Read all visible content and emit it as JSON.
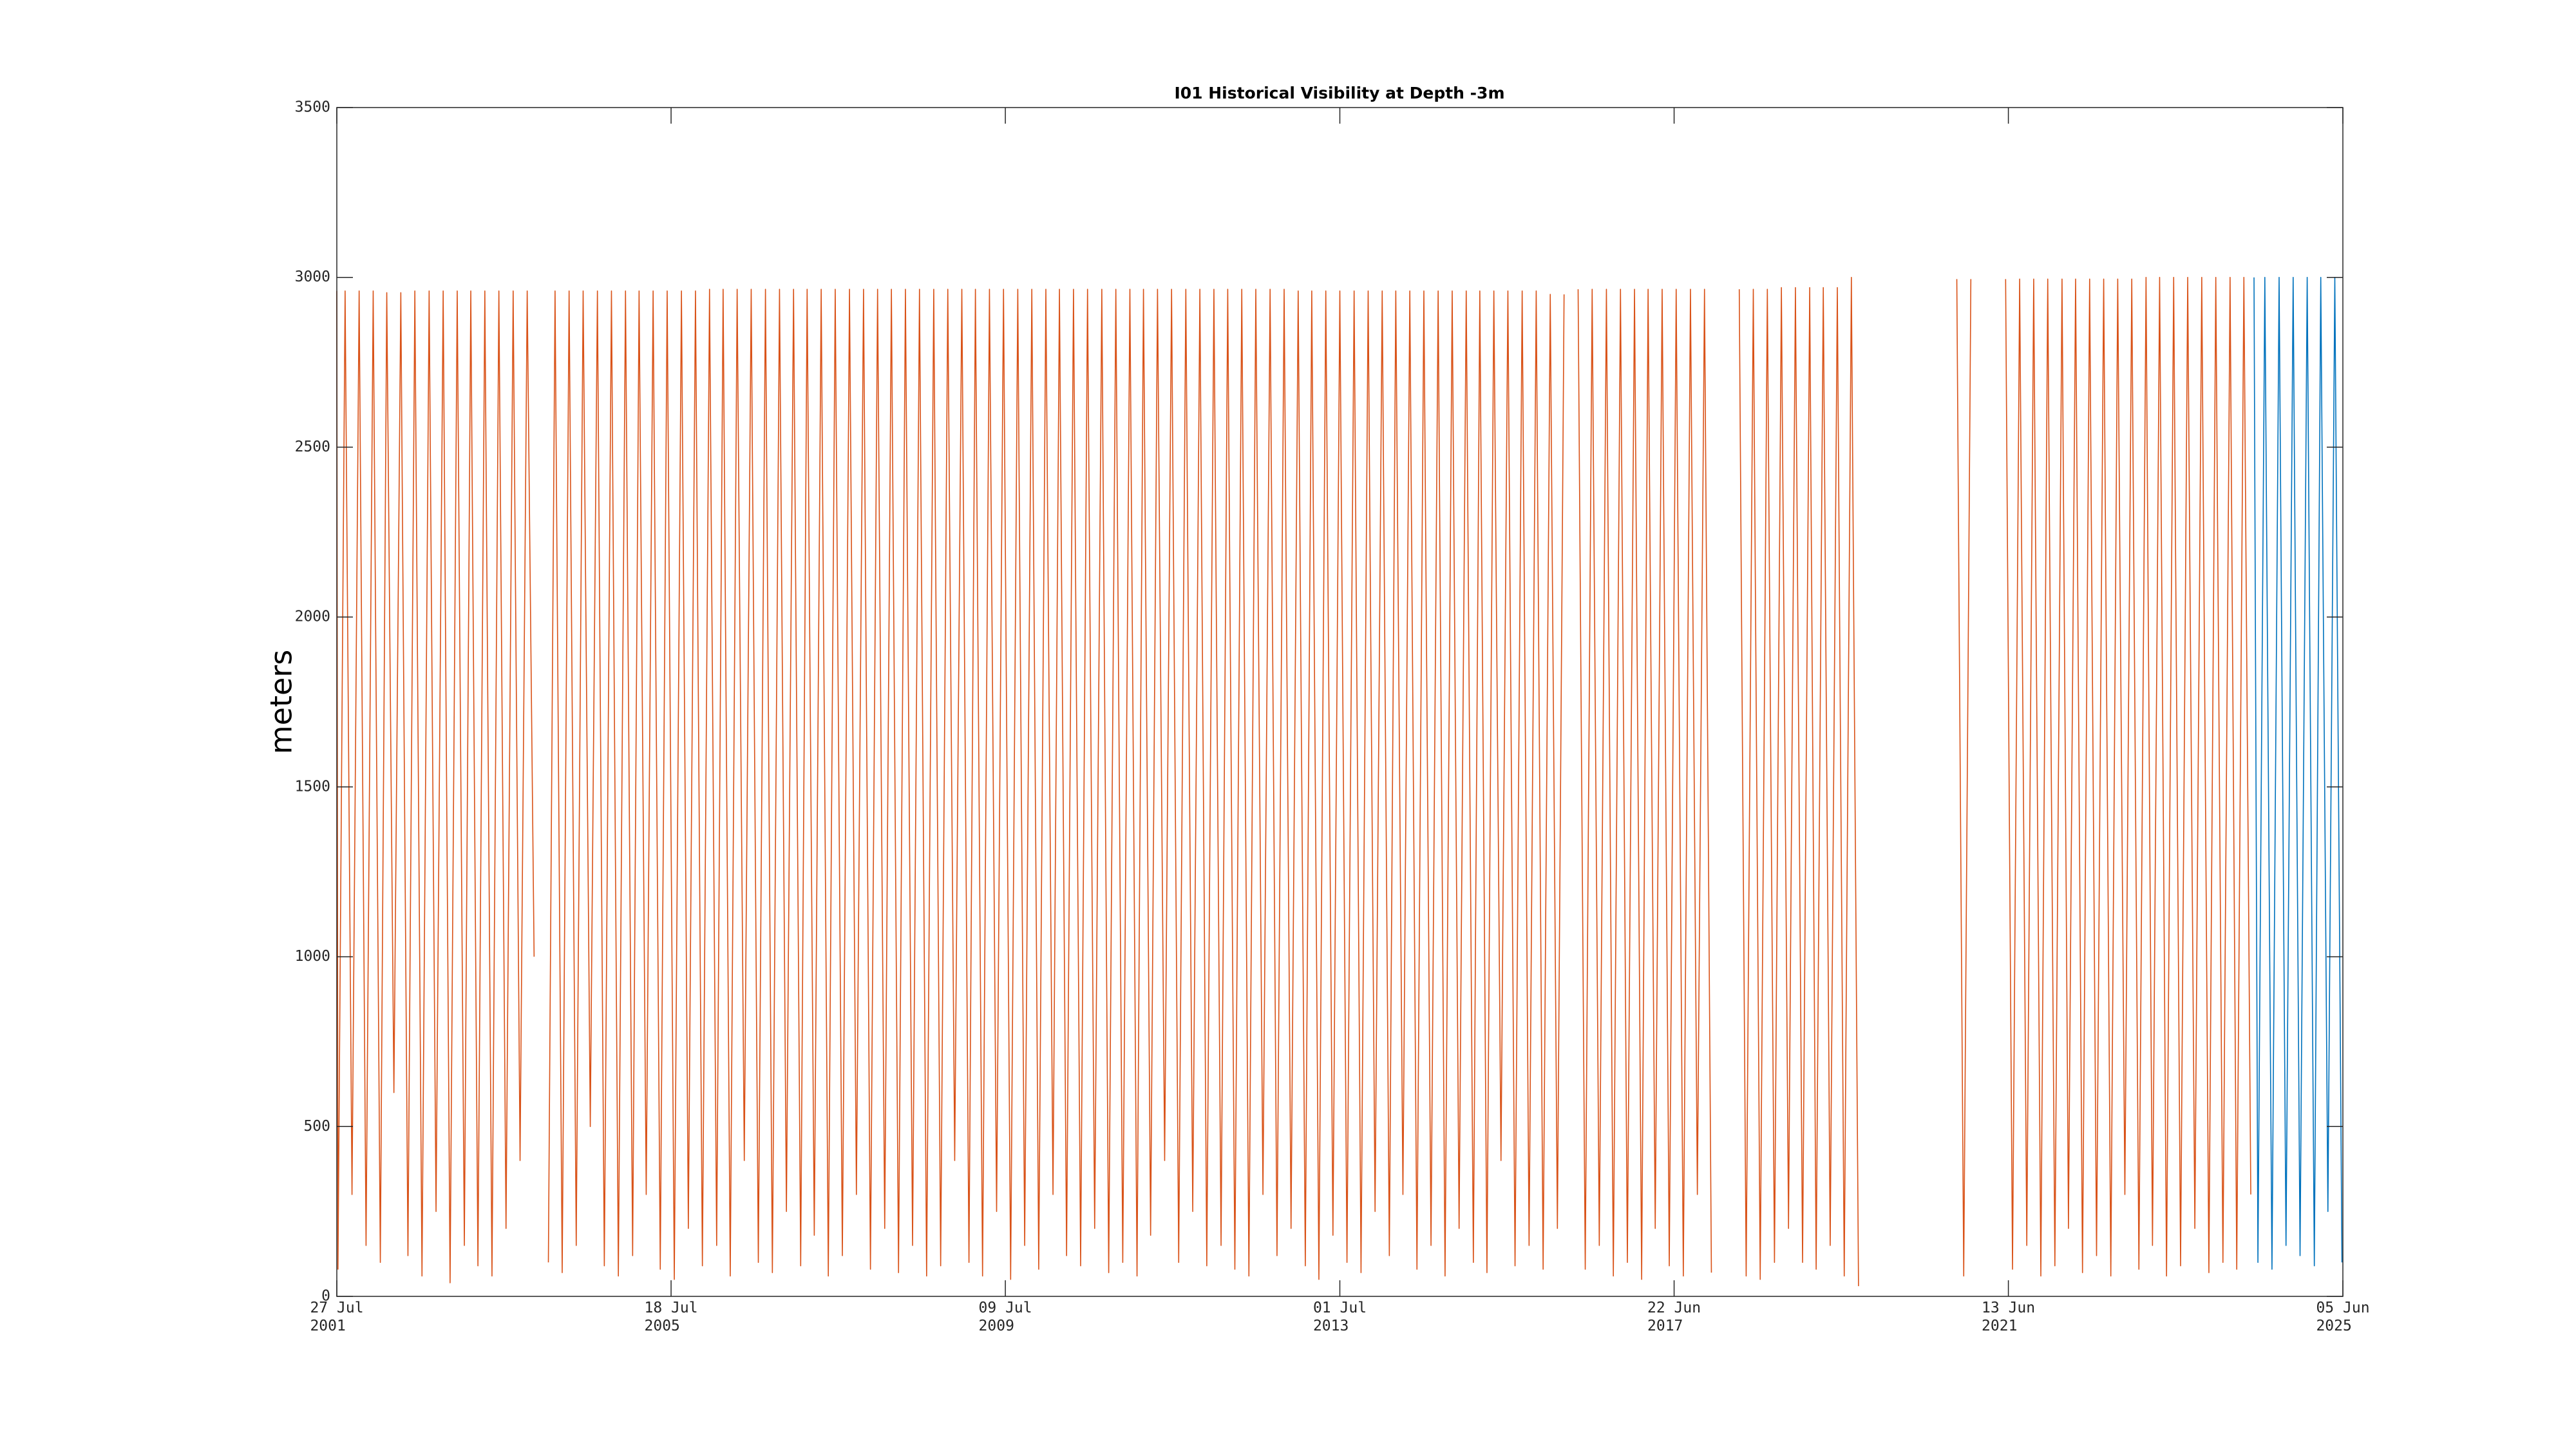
{
  "chart_data": {
    "type": "line",
    "title": "I01 Historical Visibility at Depth -3m",
    "ylabel": "meters",
    "xlim": [
      "2001-07-27",
      "2025-06-05"
    ],
    "xticks": [
      {
        "value": "2001-07-27",
        "label": "27 Jul\n2001"
      },
      {
        "value": "2005-07-18",
        "label": "18 Jul\n2005"
      },
      {
        "value": "2009-07-09",
        "label": "09 Jul\n2009"
      },
      {
        "value": "2013-07-01",
        "label": "01 Jul\n2013"
      },
      {
        "value": "2017-06-22",
        "label": "22 Jun\n2017"
      },
      {
        "value": "2021-06-13",
        "label": "13 Jun\n2021"
      },
      {
        "value": "2025-06-05",
        "label": "05 Jun\n2025"
      }
    ],
    "ylim": [
      0,
      3500
    ],
    "yticks": [
      0,
      500,
      1000,
      1500,
      2000,
      2500,
      3000,
      3500
    ],
    "grid": false,
    "series": [
      {
        "color": "#d95319",
        "x": [
          "2001-07-27",
          "2001-08-01",
          "2001-09-01",
          "2001-10-01",
          "2001-11-01",
          "2001-12-01",
          "2002-01-01",
          "2002-02-01",
          "2002-03-01",
          "2002-04-01",
          "2002-05-01",
          "2002-06-01",
          "2002-07-01",
          "2002-08-01",
          "2002-09-01",
          "2002-10-01",
          "2002-11-01",
          "2002-12-01",
          "2003-01-01",
          "2003-02-01",
          "2003-03-01",
          "2003-04-01",
          "2003-05-01",
          "2003-06-01",
          "2003-07-01",
          "2003-08-01",
          "2003-09-01",
          "2003-10-01",
          "2003-11-01",
          "2003-12-01",
          "2004-01-01",
          "2004-02-01",
          "2004-03-01",
          "2004-04-01",
          "2004-05-01",
          "2004-06-01",
          "2004-07-01",
          "2004-08-01",
          "2004-09-01",
          "2004-10-01",
          "2004-11-01",
          "2004-12-01",
          "2005-01-01",
          "2005-02-01",
          "2005-03-01",
          "2005-04-01",
          "2005-05-01",
          "2005-06-01",
          "2005-07-01",
          "2005-08-01",
          "2005-09-01",
          "2005-10-01",
          "2005-11-01",
          "2005-12-01",
          "2006-01-01",
          "2006-02-01",
          "2006-03-01",
          "2006-04-01",
          "2006-05-01",
          "2006-06-01",
          "2006-07-01",
          "2006-08-01",
          "2006-09-01",
          "2006-10-01",
          "2006-11-01",
          "2006-12-01",
          "2007-01-01",
          "2007-02-01",
          "2007-03-01",
          "2007-04-01",
          "2007-05-01",
          "2007-06-01",
          "2007-07-01",
          "2007-08-01",
          "2007-09-01",
          "2007-10-01",
          "2007-11-01",
          "2007-12-01",
          "2008-01-01",
          "2008-02-01",
          "2008-03-01",
          "2008-04-01",
          "2008-05-01",
          "2008-06-01",
          "2008-07-01",
          "2008-08-01",
          "2008-09-01",
          "2008-10-01",
          "2008-11-01",
          "2008-12-01",
          "2009-01-01",
          "2009-02-01",
          "2009-03-01",
          "2009-04-01",
          "2009-05-01",
          "2009-06-01",
          "2009-07-01",
          "2009-08-01",
          "2009-09-01",
          "2009-10-01",
          "2009-11-01",
          "2009-12-01",
          "2010-01-01",
          "2010-02-01",
          "2010-03-01",
          "2010-04-01",
          "2010-05-01",
          "2010-06-01",
          "2010-07-01",
          "2010-08-01",
          "2010-09-01",
          "2010-10-01",
          "2010-11-01",
          "2010-12-01",
          "2011-01-01",
          "2011-02-01",
          "2011-03-01",
          "2011-04-01",
          "2011-05-01",
          "2011-06-01",
          "2011-07-01",
          "2011-08-01",
          "2011-09-01",
          "2011-10-01",
          "2011-11-01",
          "2011-12-01",
          "2012-01-01",
          "2012-02-01",
          "2012-03-01",
          "2012-04-01",
          "2012-05-01",
          "2012-06-01",
          "2012-07-01",
          "2012-08-01",
          "2012-09-01",
          "2012-10-01",
          "2012-11-01",
          "2012-12-01",
          "2013-01-01",
          "2013-02-01",
          "2013-03-01",
          "2013-04-01",
          "2013-05-01",
          "2013-06-01",
          "2013-07-01",
          "2013-08-01",
          "2013-09-01",
          "2013-10-01",
          "2013-11-01",
          "2013-12-01",
          "2014-01-01",
          "2014-02-01",
          "2014-03-01",
          "2014-04-01",
          "2014-05-01",
          "2014-06-01",
          "2014-07-01",
          "2014-08-01",
          "2014-09-01",
          "2014-10-01",
          "2014-11-01",
          "2014-12-01",
          "2015-01-01",
          "2015-02-01",
          "2015-03-01",
          "2015-04-01",
          "2015-05-01",
          "2015-06-01",
          "2015-07-01",
          "2015-08-01",
          "2015-09-01",
          "2015-10-01",
          "2015-11-01",
          "2015-12-01",
          "2016-01-01",
          "2016-02-01",
          "2016-03-01",
          "2016-04-01",
          "2016-05-01",
          "2016-06-01",
          "2016-07-01",
          "2016-08-01",
          "2016-09-01",
          "2016-10-01",
          "2016-11-01",
          "2016-12-01",
          "2017-01-01",
          "2017-02-01",
          "2017-03-01",
          "2017-04-01",
          "2017-05-01",
          "2017-06-01",
          "2017-07-01",
          "2017-08-01",
          "2017-09-01",
          "2017-10-01",
          "2017-11-01",
          "2017-12-01",
          "2018-01-01",
          "2018-04-01",
          "2018-05-01",
          "2018-06-01",
          "2018-07-01",
          "2018-08-01",
          "2018-09-01",
          "2018-10-01",
          "2018-11-01",
          "2018-12-01",
          "2019-01-01",
          "2019-02-01",
          "2019-03-01",
          "2019-04-01",
          "2019-05-01",
          "2019-06-01",
          "2019-07-01",
          "2019-08-01",
          "2019-09-01",
          "2019-10-01",
          "2020-11-01",
          "2020-12-01",
          "2021-01-01",
          "2021-02-01",
          "2021-06-01",
          "2021-07-01",
          "2021-08-01",
          "2021-09-01",
          "2021-10-01",
          "2021-11-01",
          "2021-12-01",
          "2022-01-01",
          "2022-02-01",
          "2022-03-01",
          "2022-04-01",
          "2022-05-01",
          "2022-06-01",
          "2022-07-01",
          "2022-08-01",
          "2022-09-01",
          "2022-10-01",
          "2022-11-01",
          "2022-12-01",
          "2023-01-01",
          "2023-02-01",
          "2023-03-01",
          "2023-04-01",
          "2023-05-01",
          "2023-06-01",
          "2023-07-01",
          "2023-08-01",
          "2023-09-01",
          "2023-10-01",
          "2023-11-01",
          "2023-12-01",
          "2024-01-01",
          "2024-02-01",
          "2024-03-01",
          "2024-04-01",
          "2024-05-01"
        ],
        "values": [
          2960,
          80,
          2960,
          300,
          2960,
          150,
          2960,
          100,
          2955,
          600,
          2955,
          120,
          2960,
          60,
          2960,
          250,
          2960,
          40,
          2960,
          150,
          2960,
          90,
          2960,
          60,
          2960,
          200,
          2960,
          400,
          2960,
          1000,
          null,
          100,
          2960,
          70,
          2960,
          150,
          2960,
          500,
          2960,
          90,
          2960,
          60,
          2960,
          120,
          2960,
          300,
          2960,
          80,
          2960,
          50,
          2960,
          200,
          2960,
          90,
          2965,
          150,
          2965,
          60,
          2965,
          400,
          2965,
          100,
          2965,
          70,
          2965,
          250,
          2965,
          90,
          2965,
          180,
          2965,
          60,
          2965,
          120,
          2965,
          300,
          2965,
          80,
          2965,
          200,
          2965,
          70,
          2965,
          150,
          2965,
          60,
          2965,
          90,
          2965,
          400,
          2965,
          100,
          2965,
          60,
          2965,
          250,
          2965,
          50,
          2965,
          150,
          2965,
          80,
          2965,
          300,
          2965,
          120,
          2965,
          90,
          2965,
          200,
          2965,
          70,
          2965,
          100,
          2965,
          60,
          2965,
          180,
          2965,
          400,
          2965,
          100,
          2965,
          250,
          2965,
          90,
          2965,
          150,
          2965,
          80,
          2965,
          60,
          2965,
          300,
          2965,
          120,
          2965,
          200,
          2960,
          90,
          2960,
          50,
          2960,
          180,
          2960,
          100,
          2960,
          70,
          2960,
          250,
          2960,
          120,
          2960,
          300,
          2960,
          80,
          2960,
          150,
          2960,
          60,
          2960,
          200,
          2960,
          100,
          2960,
          70,
          2960,
          400,
          2960,
          90,
          2960,
          150,
          2960,
          80,
          2950,
          200,
          2950,
          null,
          2965,
          80,
          2965,
          150,
          2965,
          60,
          2965,
          100,
          2965,
          50,
          2965,
          200,
          2965,
          90,
          2965,
          60,
          2965,
          300,
          2965,
          70,
          null,
          2965,
          60,
          2965,
          50,
          2965,
          100,
          2970,
          200,
          2970,
          100,
          2970,
          80,
          2970,
          150,
          2970,
          60,
          3000,
          30,
          null,
          2995,
          60,
          2995,
          null,
          2995,
          80,
          2995,
          150,
          2995,
          60,
          2995,
          90,
          2995,
          200,
          2995,
          70,
          2995,
          120,
          2995,
          60,
          2995,
          300,
          2995,
          80,
          3000,
          150,
          3000,
          60,
          3000,
          90,
          3000,
          200,
          3000,
          70,
          3000,
          100,
          3000,
          80,
          3000,
          300
        ]
      },
      {
        "color": "#0072bd",
        "x": [
          "2024-05-15",
          "2024-06-01",
          "2024-07-01",
          "2024-08-01",
          "2024-09-01",
          "2024-10-01",
          "2024-11-01",
          "2024-12-01",
          "2025-01-01",
          "2025-02-01",
          "2025-03-01",
          "2025-04-01",
          "2025-05-01",
          "2025-06-01"
        ],
        "values": [
          3000,
          100,
          3000,
          80,
          3000,
          150,
          3000,
          120,
          3000,
          90,
          3000,
          250,
          3000,
          100
        ]
      }
    ]
  }
}
